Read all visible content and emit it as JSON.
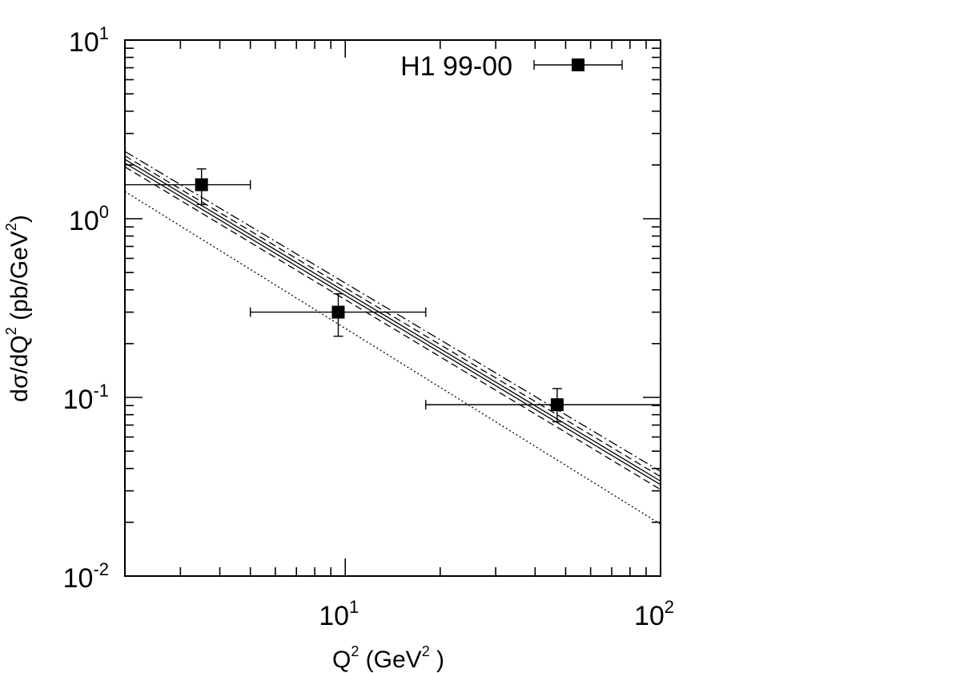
{
  "chart_data": {
    "type": "scatter",
    "title": "",
    "x_scale": "log",
    "y_scale": "log",
    "xlim": [
      2,
      100
    ],
    "ylim": [
      0.01,
      10
    ],
    "grid": false,
    "legend_placement": "top-right",
    "xlabel": {
      "main": "Q",
      "sup": "2",
      "rest": " (GeV",
      "sup2": "2",
      "end": " )"
    },
    "ylabel": {
      "a": "dσ/dQ",
      "sup": "2",
      "b": "  (pb/GeV",
      "sup2": "2",
      "c": ")"
    },
    "x_ticks": [
      {
        "base": "10",
        "exp": "1",
        "value": 10
      },
      {
        "base": "10",
        "exp": "2",
        "value": 100
      }
    ],
    "y_ticks": [
      {
        "base": "10",
        "exp": "-2",
        "value": 0.01
      },
      {
        "base": "10",
        "exp": "-1",
        "value": 0.1
      },
      {
        "base": "10",
        "exp": "0",
        "value": 1
      },
      {
        "base": "10",
        "exp": "1",
        "value": 10
      }
    ],
    "data_series": {
      "name": "H1 99-00",
      "points": [
        {
          "x": 3.5,
          "xlo": 2.0,
          "xhi": 5.0,
          "y": 1.55,
          "ylo": 1.2,
          "yhi": 1.9
        },
        {
          "x": 9.5,
          "xlo": 5.0,
          "xhi": 18.0,
          "y": 0.3,
          "ylo": 0.22,
          "yhi": 0.38
        },
        {
          "x": 47.0,
          "xlo": 18.0,
          "xhi": 100.0,
          "y": 0.091,
          "ylo": 0.073,
          "yhi": 0.112
        }
      ]
    },
    "curves": [
      {
        "style": "solid",
        "x": [
          2,
          100
        ],
        "y": [
          2.15,
          0.034
        ]
      },
      {
        "style": "solid",
        "x": [
          2,
          100
        ],
        "y": [
          2.05,
          0.0325
        ]
      },
      {
        "style": "dashed",
        "x": [
          2,
          100
        ],
        "y": [
          2.25,
          0.036
        ]
      },
      {
        "style": "dashed",
        "x": [
          2,
          100
        ],
        "y": [
          1.95,
          0.0305
        ]
      },
      {
        "style": "dashdot",
        "x": [
          2,
          100
        ],
        "y": [
          2.38,
          0.0385
        ]
      },
      {
        "style": "dotted",
        "x": [
          2,
          100
        ],
        "y": [
          1.42,
          0.0195
        ]
      }
    ]
  }
}
